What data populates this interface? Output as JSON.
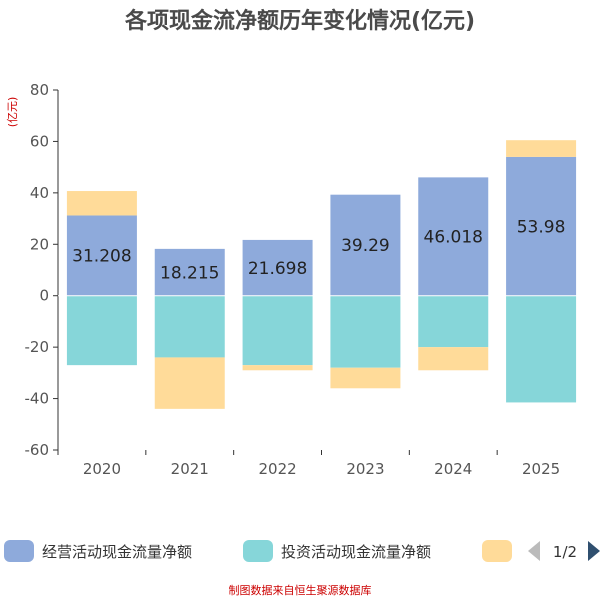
{
  "chart_data": {
    "type": "bar",
    "stacked": true,
    "title": "各项现金流净额历年变化情况(亿元)",
    "ylabel": "(亿元)",
    "categories": [
      "2020",
      "2021",
      "2022",
      "2023",
      "2024",
      "2025"
    ],
    "ylim": [
      -60,
      80
    ],
    "yticks": [
      80,
      60,
      40,
      20,
      0,
      -20,
      -40,
      -60
    ],
    "grid": false,
    "legend_position": "bottom",
    "series": [
      {
        "name": "经营活动现金流量净额",
        "color": "#8eaadb",
        "values": [
          31.208,
          18.215,
          21.698,
          39.29,
          46.018,
          53.98
        ],
        "value_labels": [
          "31.208",
          "18.215",
          "21.698",
          "39.29",
          "46.018",
          "53.98"
        ]
      },
      {
        "name": "投资活动现金流量净额",
        "color": "#86d6d9",
        "values": [
          -27,
          -24,
          -27,
          -28,
          -20,
          -41.5
        ]
      },
      {
        "name": "",
        "color": "#ffdb99",
        "values": [
          9.5,
          -20,
          -2,
          -8,
          -9,
          6.5
        ]
      }
    ],
    "legend_pager": "1/2",
    "source": "制图数据来自恒生聚源数据库"
  }
}
